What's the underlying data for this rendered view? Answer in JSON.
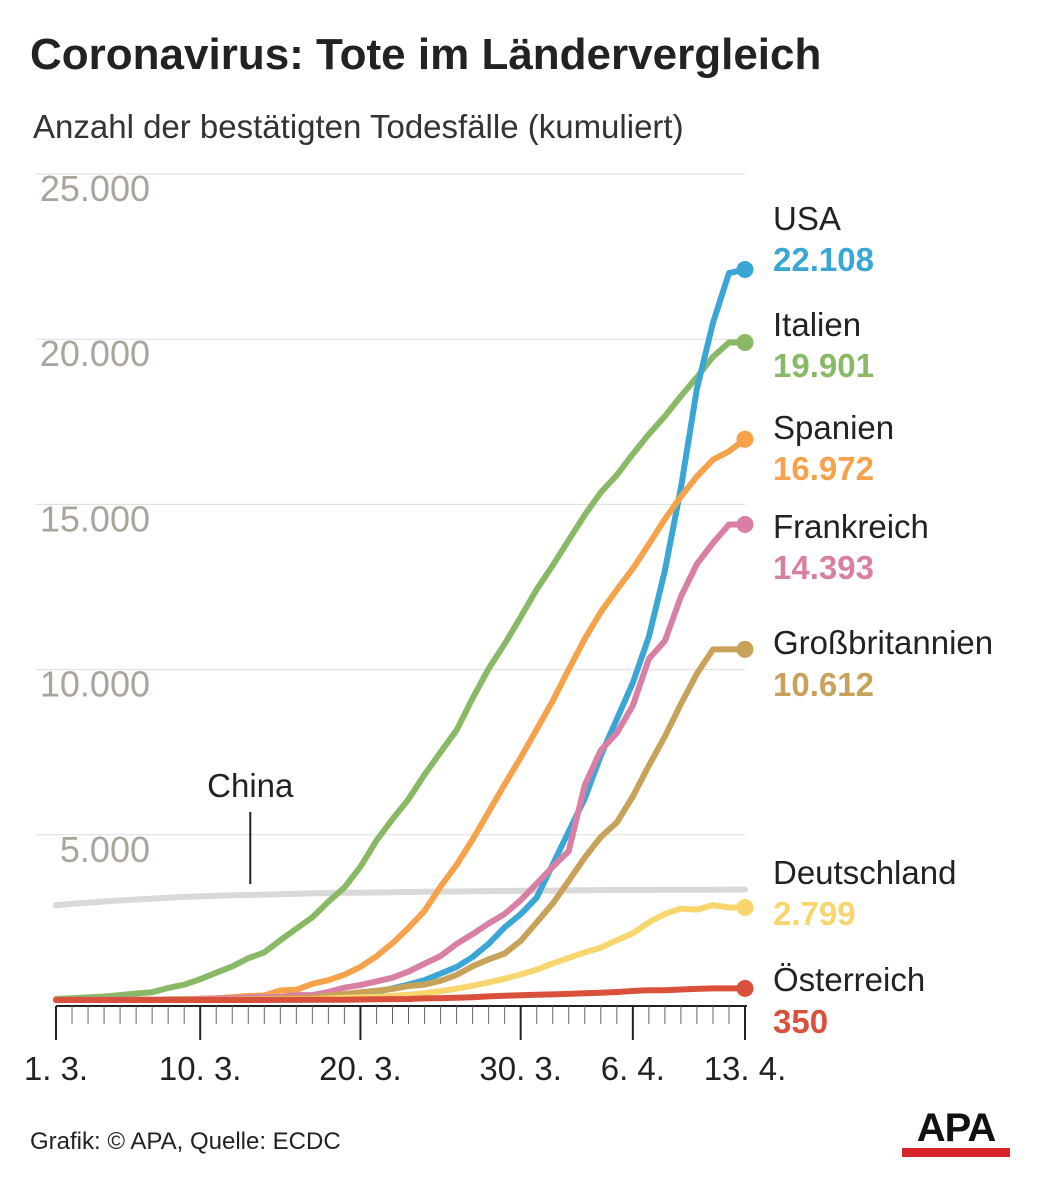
{
  "title": "Coronavirus: Tote im Ländervergleich",
  "subtitle": "Anzahl der bestätigten Todesfälle (kumuliert)",
  "source": "Grafik: © APA, Quelle: ECDC",
  "logo": "APA",
  "colors": {
    "grid": "#dddddd",
    "axis": "#222222",
    "china": "#d9d9d9",
    "logo_bar": "#d8242b"
  },
  "chart_data": {
    "type": "line",
    "xlabel": "",
    "ylabel": "",
    "x_start": "1. 3.",
    "x_end": "13. 4.",
    "days": 44,
    "ylim": [
      0,
      25000
    ],
    "grid": true,
    "yticks": [
      {
        "value": 5000,
        "label": "5.000"
      },
      {
        "value": 10000,
        "label": "10.000"
      },
      {
        "value": 15000,
        "label": "15.000"
      },
      {
        "value": 20000,
        "label": "20.000"
      },
      {
        "value": 25000,
        "label": "25.000"
      }
    ],
    "xticks": [
      {
        "day": 0,
        "label": "1. 3."
      },
      {
        "day": 9,
        "label": "10. 3."
      },
      {
        "day": 19,
        "label": "20. 3."
      },
      {
        "day": 29,
        "label": "30. 3."
      },
      {
        "day": 36,
        "label": "6. 4."
      },
      {
        "day": 43,
        "label": "13. 4."
      }
    ],
    "annotations": [
      {
        "text": "China",
        "day": 12,
        "value": 3250
      }
    ],
    "series": [
      {
        "name": "China",
        "color": "#d9d9d9",
        "labeled": false,
        "label_value": "",
        "values": [
          2870,
          2912,
          2943,
          2981,
          3012,
          3042,
          3070,
          3097,
          3119,
          3136,
          3158,
          3169,
          3176,
          3189,
          3199,
          3213,
          3226,
          3237,
          3245,
          3249,
          3253,
          3259,
          3270,
          3277,
          3281,
          3285,
          3292,
          3295,
          3300,
          3304,
          3305,
          3312,
          3318,
          3322,
          3326,
          3330,
          3331,
          3333,
          3335,
          3336,
          3337,
          3339,
          3340,
          3341
        ]
      },
      {
        "name": "Italien",
        "color": "#8ab966",
        "labeled": true,
        "label_value": "19.901",
        "values": [
          34,
          52,
          79,
          107,
          148,
          197,
          233,
          366,
          463,
          631,
          827,
          1016,
          1266,
          1441,
          1809,
          2158,
          2503,
          2978,
          3405,
          4032,
          4825,
          5476,
          6077,
          6820,
          7503,
          8165,
          9134,
          10023,
          10779,
          11591,
          12428,
          13155,
          13915,
          14681,
          15362,
          15887,
          16523,
          17127,
          17669,
          18279,
          18849,
          19468,
          19899,
          19901
        ]
      },
      {
        "name": "USA",
        "color": "#3aa6d6",
        "labeled": true,
        "label_value": "22.108",
        "values": [
          1,
          2,
          6,
          9,
          11,
          12,
          15,
          19,
          22,
          26,
          30,
          38,
          41,
          48,
          57,
          69,
          85,
          108,
          150,
          200,
          250,
          350,
          470,
          600,
          800,
          1000,
          1300,
          1700,
          2200,
          2600,
          3100,
          4100,
          5100,
          6100,
          7400,
          8500,
          9600,
          11000,
          13000,
          15500,
          18500,
          20500,
          22000,
          22108
        ]
      },
      {
        "name": "Spanien",
        "color": "#f5a24b",
        "labeled": true,
        "label_value": "16.972",
        "values": [
          0,
          0,
          1,
          2,
          3,
          5,
          10,
          17,
          28,
          35,
          54,
          84,
          121,
          136,
          288,
          309,
          491,
          598,
          767,
          1002,
          1326,
          1720,
          2182,
          2696,
          3434,
          4089,
          4858,
          5690,
          6528,
          7340,
          8189,
          9053,
          10003,
          10935,
          11744,
          12418,
          13055,
          13798,
          14555,
          15238,
          15843,
          16353,
          16606,
          16972
        ]
      },
      {
        "name": "Frankreich",
        "color": "#d97fa6",
        "labeled": true,
        "label_value": "14.393",
        "values": [
          2,
          3,
          4,
          4,
          7,
          9,
          11,
          19,
          19,
          33,
          48,
          48,
          79,
          91,
          91,
          148,
          148,
          244,
          372,
          450,
          562,
          674,
          860,
          1100,
          1331,
          1696,
          1995,
          2314,
          2606,
          3024,
          3523,
          4032,
          4503,
          6507,
          7560,
          8078,
          8911,
          10328,
          10869,
          12210,
          13197,
          13832,
          14393,
          14393
        ]
      },
      {
        "name": "Großbritannien",
        "color": "#c9a25a",
        "labeled": true,
        "label_value": "10.612",
        "values": [
          0,
          0,
          0,
          0,
          1,
          2,
          3,
          5,
          6,
          7,
          8,
          8,
          21,
          21,
          56,
          56,
          72,
          138,
          178,
          234,
          282,
          336,
          423,
          466,
          580,
          761,
          1019,
          1228,
          1408,
          1789,
          2352,
          2921,
          3605,
          4313,
          4934,
          5373,
          6159,
          7097,
          7978,
          8958,
          9875,
          10612,
          10612,
          10612
        ]
      },
      {
        "name": "Deutschland",
        "color": "#f9d56e",
        "labeled": true,
        "label_value": "2.799",
        "values": [
          0,
          0,
          0,
          0,
          0,
          0,
          0,
          2,
          2,
          3,
          3,
          6,
          9,
          11,
          17,
          24,
          28,
          44,
          67,
          84,
          94,
          123,
          157,
          206,
          267,
          342,
          433,
          533,
          645,
          775,
          920,
          1107,
          1275,
          1444,
          1584,
          1810,
          2016,
          2349,
          2607,
          2767,
          2736,
          2871,
          2799,
          2799
        ]
      },
      {
        "name": "Österreich",
        "color": "#d9503c",
        "labeled": true,
        "label_value": "350",
        "values": [
          0,
          0,
          0,
          0,
          0,
          0,
          0,
          0,
          0,
          0,
          0,
          1,
          1,
          1,
          3,
          4,
          6,
          6,
          8,
          16,
          21,
          28,
          30,
          49,
          58,
          68,
          86,
          108,
          128,
          146,
          158,
          168,
          186,
          204,
          220,
          243,
          273,
          295,
          295,
          319,
          337,
          350,
          350,
          350
        ]
      }
    ]
  }
}
